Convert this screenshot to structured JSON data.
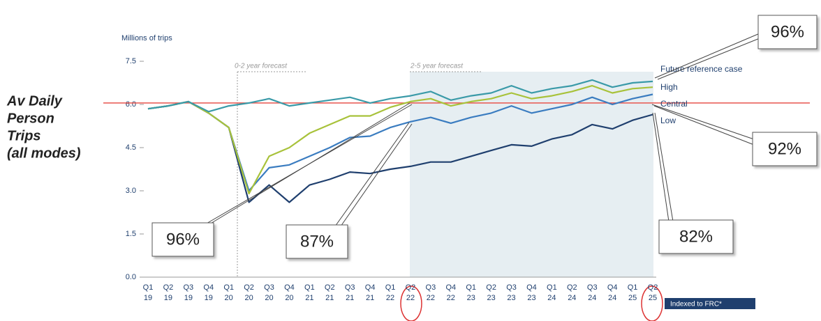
{
  "chart_data": {
    "type": "line",
    "y_axis_label": "Millions of trips",
    "side_label": [
      "Av Daily",
      "Person",
      "Trips",
      "(all modes)"
    ],
    "categories": [
      "Q1 19",
      "Q2 19",
      "Q3 19",
      "Q4 19",
      "Q1 20",
      "Q2 20",
      "Q3 20",
      "Q4 20",
      "Q1 21",
      "Q2 21",
      "Q3 21",
      "Q4 21",
      "Q1 22",
      "Q2 22",
      "Q3 22",
      "Q4 22",
      "Q1 23",
      "Q2 23",
      "Q3 23",
      "Q4 23",
      "Q1 24",
      "Q2 24",
      "Q3 24",
      "Q4 24",
      "Q1 25",
      "Q2 25"
    ],
    "series": [
      {
        "name": "Future reference case",
        "color": "#3a9aa8",
        "values": [
          5.85,
          5.95,
          6.1,
          5.75,
          5.95,
          6.05,
          6.2,
          5.95,
          6.05,
          6.15,
          6.25,
          6.05,
          6.2,
          6.3,
          6.45,
          6.15,
          6.3,
          6.4,
          6.65,
          6.4,
          6.55,
          6.65,
          6.85,
          6.6,
          6.75,
          6.8
        ]
      },
      {
        "name": "High",
        "color": "#a8c23a",
        "values": [
          5.85,
          5.95,
          6.1,
          5.7,
          5.2,
          2.9,
          4.2,
          4.5,
          5.0,
          5.3,
          5.6,
          5.6,
          5.9,
          6.1,
          6.2,
          5.95,
          6.1,
          6.2,
          6.4,
          6.2,
          6.3,
          6.45,
          6.65,
          6.4,
          6.55,
          6.6
        ]
      },
      {
        "name": "Central",
        "color": "#3a7cc0",
        "values": [
          5.85,
          5.95,
          6.1,
          5.7,
          5.2,
          3.0,
          3.8,
          3.9,
          4.2,
          4.5,
          4.85,
          4.9,
          5.2,
          5.4,
          5.55,
          5.35,
          5.55,
          5.7,
          5.95,
          5.7,
          5.85,
          6.0,
          6.25,
          6.0,
          6.2,
          6.35
        ]
      },
      {
        "name": "Low",
        "color": "#1f3f6e",
        "values": [
          5.85,
          5.95,
          6.1,
          5.7,
          5.2,
          2.6,
          3.2,
          2.6,
          3.2,
          3.4,
          3.65,
          3.6,
          3.75,
          3.85,
          4.0,
          4.0,
          4.2,
          4.4,
          4.6,
          4.55,
          4.8,
          4.95,
          5.3,
          5.15,
          5.45,
          5.65
        ]
      }
    ],
    "ylim": [
      0,
      7.5
    ],
    "yticks": [
      {
        "value": 0,
        "label": "0.0"
      },
      1.5,
      {
        "value": 3,
        "label": "3.0"
      },
      4.5,
      {
        "value": 6,
        "label": "6.0"
      },
      7.5
    ],
    "reference_line": 6.05,
    "annotations": [
      "0-2 year forecast",
      "2-5 year forecast",
      "Indexed to FRC*"
    ],
    "callouts": [
      "96%",
      "96%",
      "92%",
      "87%",
      "82%"
    ]
  }
}
